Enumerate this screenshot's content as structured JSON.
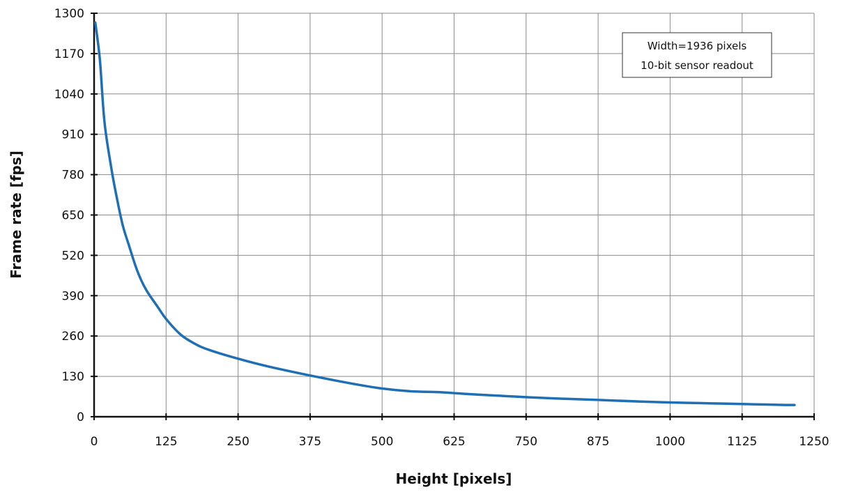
{
  "chart_data": {
    "type": "line",
    "xlabel": "Height [pixels]",
    "ylabel": "Frame rate [fps]",
    "xlim": [
      0,
      1250
    ],
    "ylim": [
      0,
      1300
    ],
    "xticks": [
      0,
      125,
      250,
      375,
      500,
      625,
      750,
      875,
      1000,
      1125,
      1250
    ],
    "yticks": [
      0,
      130,
      260,
      390,
      520,
      650,
      780,
      910,
      1040,
      1170,
      1300
    ],
    "grid": true,
    "annotation": [
      "Width=1936 pixels",
      "10-bit sensor readout"
    ],
    "series": [
      {
        "color": "#1f6fb5",
        "x": [
          2,
          10,
          18,
          30,
          40,
          50,
          60,
          75,
          90,
          110,
          125,
          150,
          175,
          200,
          250,
          300,
          375,
          450,
          500,
          550,
          600,
          650,
          700,
          750,
          800,
          875,
          950,
          1000,
          1050,
          1100,
          1150,
          1200,
          1216
        ],
        "y": [
          1270,
          1150,
          950,
          800,
          700,
          615,
          555,
          470,
          410,
          355,
          315,
          265,
          235,
          215,
          187,
          163,
          133,
          106,
          91,
          82,
          79,
          73,
          68,
          63,
          59,
          54,
          49,
          46,
          44,
          42,
          40,
          38,
          38
        ]
      }
    ]
  }
}
